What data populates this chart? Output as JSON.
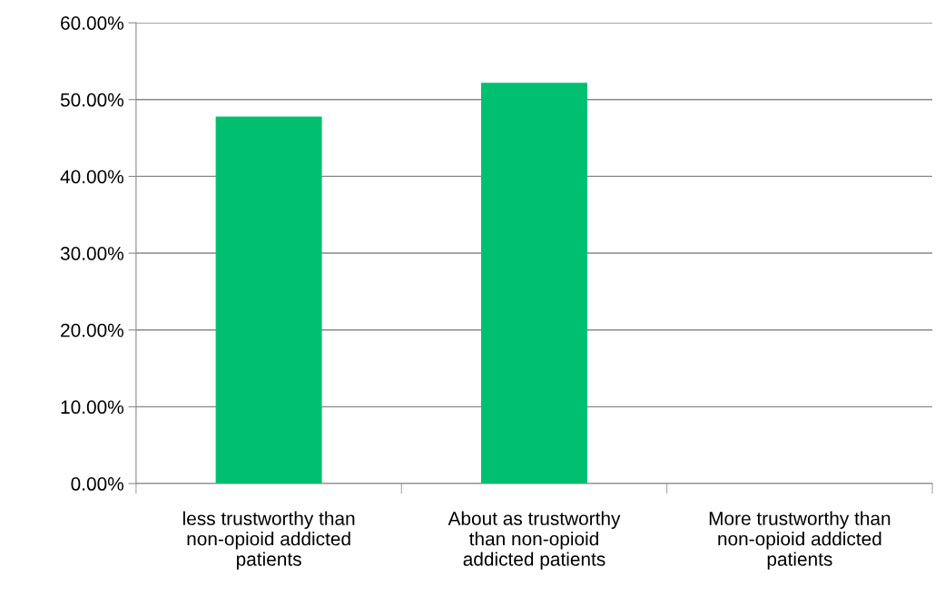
{
  "chart_data": {
    "type": "bar",
    "categories": [
      "less trustworthy than non-opioid addicted patients",
      "About as trustworthy than non-opioid addicted patients",
      "More trustworthy than non-opioid addicted patients"
    ],
    "values": [
      47.8,
      52.2,
      0
    ],
    "color": "#00c070",
    "ylim": [
      0,
      60
    ],
    "yticks": [
      {
        "value": 0,
        "label": "0.00%"
      },
      {
        "value": 10,
        "label": "10.00%"
      },
      {
        "value": 20,
        "label": "20.00%"
      },
      {
        "value": 30,
        "label": "30.00%"
      },
      {
        "value": 40,
        "label": "40.00%"
      },
      {
        "value": 50,
        "label": "50.00%"
      },
      {
        "value": 60,
        "label": "60.00%"
      }
    ],
    "grid": "y",
    "legend": false
  }
}
